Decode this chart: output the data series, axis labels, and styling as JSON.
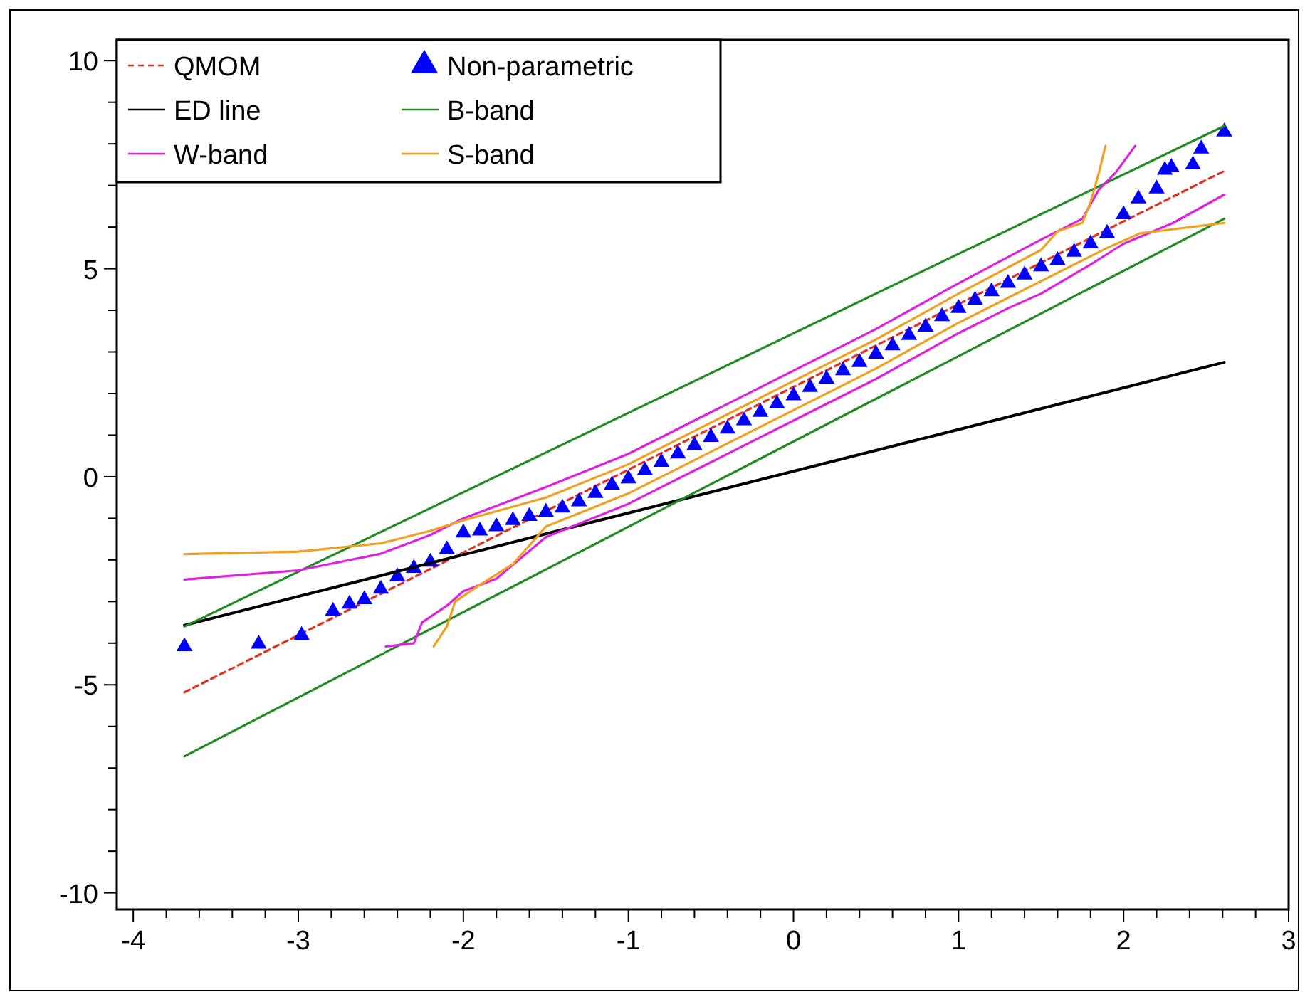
{
  "chart_data": {
    "type": "line",
    "legend": "top left",
    "grid": false,
    "xlim": [
      -4.1,
      3
    ],
    "ylim": [
      -10.4,
      10.5
    ],
    "xticks": [
      -4,
      {
        "value": -3.8,
        "label": null
      },
      {
        "value": -3.6,
        "label": null
      },
      {
        "value": -3.4,
        "label": null
      },
      {
        "value": -3.2,
        "label": null
      },
      -3,
      {
        "value": -2.8,
        "label": null
      },
      {
        "value": -2.6,
        "label": null
      },
      {
        "value": -2.4,
        "label": null
      },
      {
        "value": -2.2,
        "label": null
      },
      -2,
      {
        "value": -1.8,
        "label": null
      },
      {
        "value": -1.6,
        "label": null
      },
      {
        "value": -1.4,
        "label": null
      },
      {
        "value": -1.2,
        "label": null
      },
      -1,
      {
        "value": -0.8,
        "label": null
      },
      {
        "value": -0.6,
        "label": null
      },
      {
        "value": -0.4,
        "label": null
      },
      {
        "value": -0.2,
        "label": null
      },
      0,
      {
        "value": 0.2,
        "label": null
      },
      {
        "value": 0.4,
        "label": null
      },
      {
        "value": 0.6,
        "label": null
      },
      {
        "value": 0.8,
        "label": null
      },
      1,
      {
        "value": 1.2,
        "label": null
      },
      {
        "value": 1.4,
        "label": null
      },
      {
        "value": 1.6,
        "label": null
      },
      {
        "value": 1.8,
        "label": null
      },
      2,
      {
        "value": 2.2,
        "label": null
      },
      {
        "value": 2.4,
        "label": null
      },
      {
        "value": 2.6,
        "label": null
      },
      {
        "value": 2.8,
        "label": null
      },
      3
    ],
    "yticks": [
      -10,
      {
        "value": -9,
        "label": null
      },
      {
        "value": -8,
        "label": null
      },
      {
        "value": -7,
        "label": null
      },
      {
        "value": -6,
        "label": null
      },
      -5,
      {
        "value": -4,
        "label": null
      },
      {
        "value": -3,
        "label": null
      },
      {
        "value": -2,
        "label": null
      },
      {
        "value": -1,
        "label": null
      },
      0,
      {
        "value": 1,
        "label": null
      },
      {
        "value": 2,
        "label": null
      },
      {
        "value": 3,
        "label": null
      },
      {
        "value": 4,
        "label": null
      },
      5,
      {
        "value": 6,
        "label": null
      },
      {
        "value": 7,
        "label": null
      },
      {
        "value": 8,
        "label": null
      },
      {
        "value": 9,
        "label": null
      },
      10
    ],
    "series": [
      {
        "name": "QMOM",
        "color": "#e03020",
        "line_style": "dashed",
        "x": [
          -3.69,
          2.61
        ],
        "values": [
          -5.18,
          7.35
        ]
      },
      {
        "name": "Non-parametric",
        "type": "scatter",
        "marker": "triangle",
        "color": "#0000ff",
        "x": [
          -3.69,
          -3.24,
          -2.98,
          -2.79,
          -2.69,
          -2.6,
          -2.5,
          -2.4,
          -2.3,
          -2.2,
          -2.1,
          -2.0,
          -1.9,
          -1.8,
          -1.7,
          -1.6,
          -1.5,
          -1.4,
          -1.3,
          -1.2,
          -1.1,
          -1.0,
          -0.9,
          -0.8,
          -0.7,
          -0.6,
          -0.5,
          -0.4,
          -0.3,
          -0.2,
          -0.1,
          0,
          0.1,
          0.2,
          0.3,
          0.4,
          0.5,
          0.6,
          0.7,
          0.8,
          0.9,
          1.0,
          1.1,
          1.2,
          1.3,
          1.4,
          1.5,
          1.6,
          1.7,
          1.8,
          1.9,
          2.0,
          2.09,
          2.2,
          2.25,
          2.29,
          2.42,
          2.47,
          2.61
        ],
        "values": [
          -4.08,
          -4.02,
          -3.81,
          -3.23,
          -3.06,
          -2.95,
          -2.7,
          -2.4,
          -2.2,
          -2.05,
          -1.75,
          -1.35,
          -1.3,
          -1.2,
          -1.05,
          -0.95,
          -0.85,
          -0.75,
          -0.6,
          -0.4,
          -0.2,
          -0.05,
          0.15,
          0.35,
          0.55,
          0.75,
          0.95,
          1.15,
          1.35,
          1.55,
          1.75,
          1.95,
          2.15,
          2.35,
          2.55,
          2.75,
          2.95,
          3.15,
          3.4,
          3.6,
          3.85,
          4.05,
          4.25,
          4.45,
          4.65,
          4.85,
          5.05,
          5.2,
          5.4,
          5.6,
          5.85,
          6.3,
          6.68,
          6.92,
          7.37,
          7.44,
          7.5,
          7.88,
          8.29
        ]
      },
      {
        "name": "ED line",
        "color": "#000000",
        "line_style": "solid",
        "x": [
          -3.69,
          2.61
        ],
        "values": [
          -3.57,
          2.75
        ]
      },
      {
        "name": "B-band",
        "color": "#228b22",
        "line_style": "solid",
        "x": [
          -3.69,
          2.61
        ],
        "values": [
          -3.6,
          8.43
        ]
      },
      {
        "name": "W-band",
        "color": "#e020e0",
        "line_style": "solid",
        "x": [
          -3.69,
          -3.0,
          -2.5,
          -2.2,
          -2.0,
          -1.5,
          -1.0,
          -0.5,
          0,
          0.5,
          1.0,
          1.5,
          1.75,
          1.85,
          1.95,
          2.07
        ],
        "values": [
          -2.47,
          -2.25,
          -1.85,
          -1.4,
          -1.0,
          -0.25,
          0.55,
          1.55,
          2.55,
          3.55,
          4.65,
          5.7,
          6.2,
          6.9,
          7.3,
          7.95
        ]
      },
      {
        "name": "S-band",
        "color": "#f0a020",
        "line_style": "solid",
        "x": [
          -3.69,
          -3.0,
          -2.5,
          -2.2,
          -2.0,
          -1.5,
          -1.0,
          -0.5,
          0,
          0.5,
          1.0,
          1.5,
          1.6,
          1.75,
          1.8,
          1.85,
          1.89
        ],
        "values": [
          -1.86,
          -1.8,
          -1.6,
          -1.3,
          -1.05,
          -0.5,
          0.3,
          1.3,
          2.3,
          3.3,
          4.4,
          5.45,
          5.9,
          6.1,
          6.6,
          7.3,
          7.95
        ]
      },
      {
        "color": "#228b22",
        "line_style": "solid",
        "x": [
          -3.69,
          2.61
        ],
        "values": [
          -6.72,
          6.2
        ]
      },
      {
        "color": "#e020e0",
        "line_style": "solid",
        "x": [
          -2.47,
          -2.3,
          -2.25,
          -2.1,
          -2.0,
          -1.8,
          -1.5,
          -1.0,
          -0.5,
          0,
          0.5,
          1.0,
          1.3,
          1.5,
          1.8,
          2.0,
          2.3,
          2.61
        ],
        "values": [
          -4.08,
          -4.0,
          -3.5,
          -3.1,
          -2.75,
          -2.45,
          -1.45,
          -0.65,
          0.35,
          1.35,
          2.35,
          3.45,
          4.05,
          4.4,
          5.1,
          5.6,
          6.1,
          6.78
        ]
      },
      {
        "color": "#f0a020",
        "line_style": "solid",
        "x": [
          -2.18,
          -2.1,
          -2.05,
          -1.9,
          -1.7,
          -1.5,
          -1.0,
          -0.5,
          0,
          0.5,
          1.0,
          1.3,
          1.6,
          1.9,
          2.1,
          2.61
        ],
        "values": [
          -4.08,
          -3.6,
          -3.0,
          -2.6,
          -2.1,
          -1.2,
          -0.4,
          0.6,
          1.6,
          2.6,
          3.7,
          4.3,
          4.9,
          5.5,
          5.85,
          6.1
        ]
      }
    ]
  }
}
